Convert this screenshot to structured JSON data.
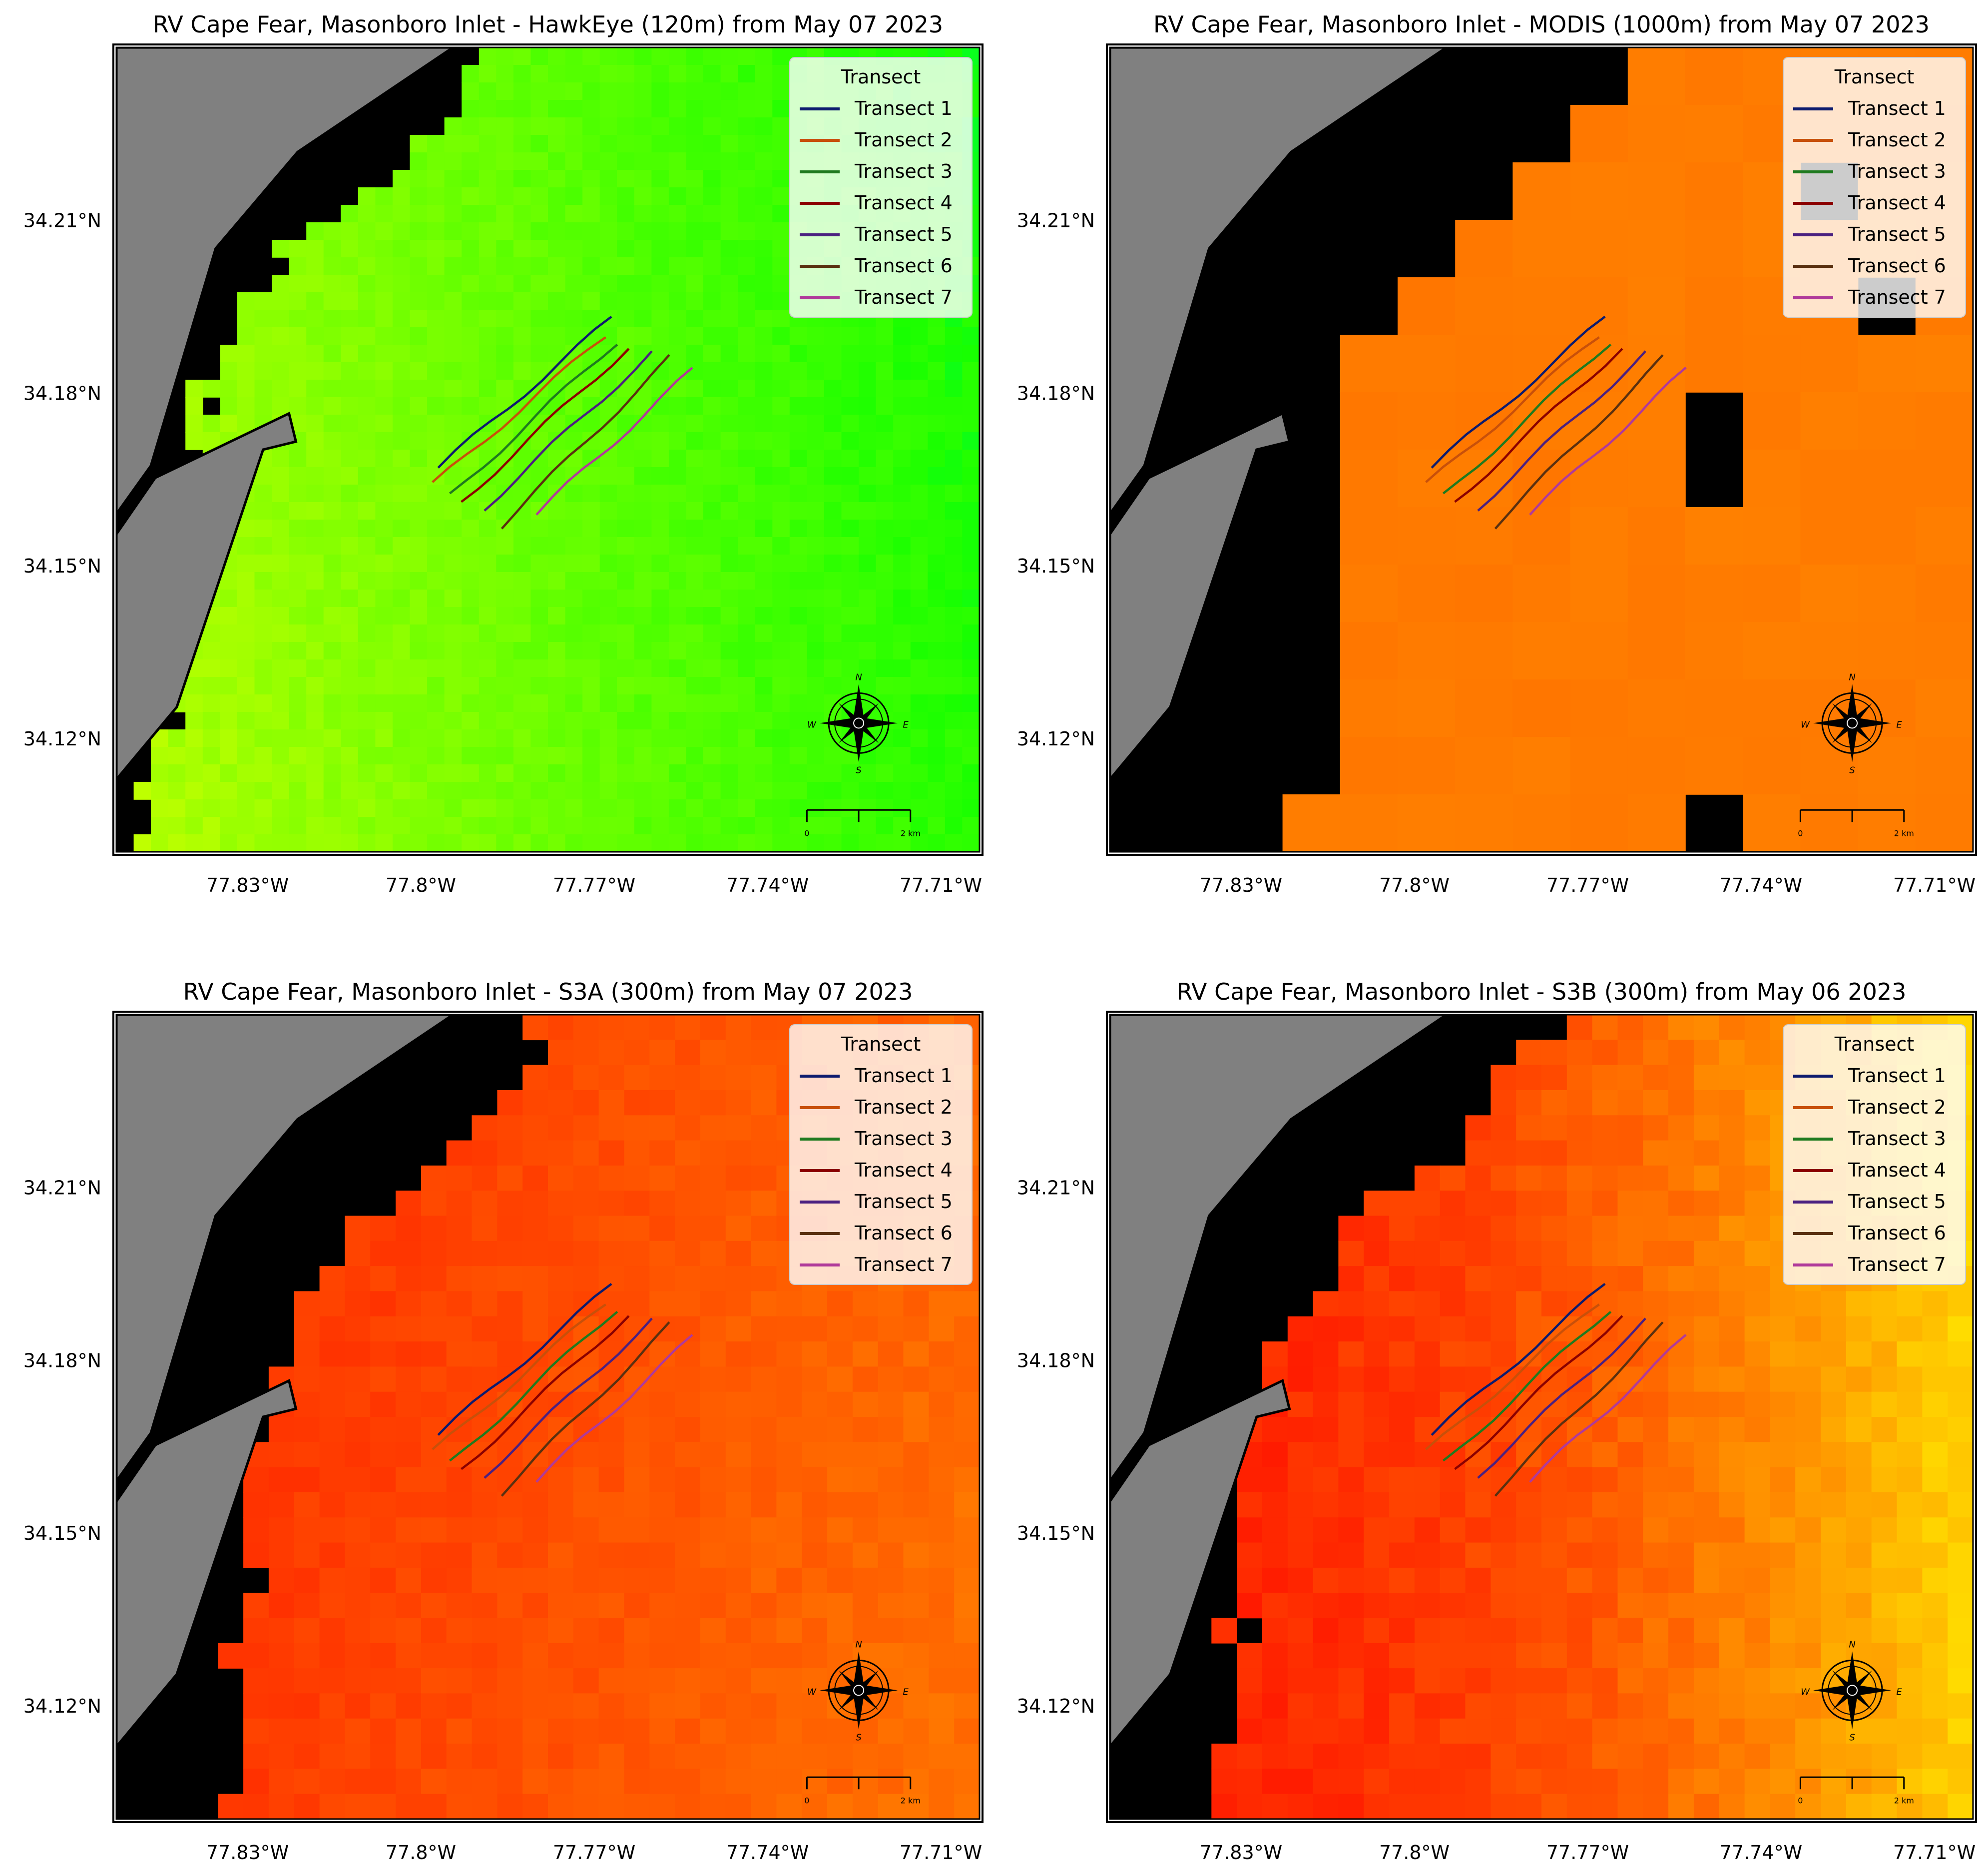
{
  "panels": [
    {
      "title": "RV Cape Fear, Masonboro Inlet - HawkEye (120m) from May 07 2023",
      "palette": "hawkeye",
      "pixel_size_km": "120m"
    },
    {
      "title": "RV Cape Fear, Masonboro Inlet - MODIS (1000m) from May 07 2023",
      "palette": "modis",
      "pixel_size_km": "1000m"
    },
    {
      "title": "RV Cape Fear, Masonboro Inlet - S3A (300m) from May 07 2023",
      "palette": "s3a",
      "pixel_size_km": "300m"
    },
    {
      "title": "RV Cape Fear, Masonboro Inlet - S3B (300m) from May 06 2023",
      "palette": "s3b",
      "pixel_size_km": "300m"
    }
  ],
  "legend": {
    "title": "Transect",
    "entries": [
      {
        "label": "Transect 1",
        "color": "#0d1b6e"
      },
      {
        "label": "Transect 2",
        "color": "#c8500a"
      },
      {
        "label": "Transect 3",
        "color": "#1f7a1f"
      },
      {
        "label": "Transect 4",
        "color": "#8b0000"
      },
      {
        "label": "Transect 5",
        "color": "#4b2080"
      },
      {
        "label": "Transect 6",
        "color": "#5a3010"
      },
      {
        "label": "Transect 7",
        "color": "#b03a9a"
      }
    ]
  },
  "axes": {
    "lon_ticks": [
      {
        "value": -77.83,
        "label": "77.83°W"
      },
      {
        "value": -77.8,
        "label": "77.8°W"
      },
      {
        "value": -77.77,
        "label": "77.77°W"
      },
      {
        "value": -77.74,
        "label": "77.74°W"
      },
      {
        "value": -77.71,
        "label": "77.71°W"
      }
    ],
    "lat_ticks": [
      {
        "value": 34.21,
        "label": "34.21°N"
      },
      {
        "value": 34.18,
        "label": "34.18°N"
      },
      {
        "value": 34.15,
        "label": "34.15°N"
      },
      {
        "value": 34.12,
        "label": "34.12°N"
      }
    ],
    "lon_range": [
      -77.8527,
      -77.7033
    ],
    "lat_range": [
      34.1003,
      34.24
    ]
  },
  "compass": {
    "n": "N",
    "s": "S",
    "e": "E",
    "w": "W"
  },
  "scale_bar": {
    "start_label": "0",
    "end_label": "2 km"
  },
  "colors": {
    "land": "#808080",
    "nodata": "#000000",
    "frame": "#000000"
  }
}
